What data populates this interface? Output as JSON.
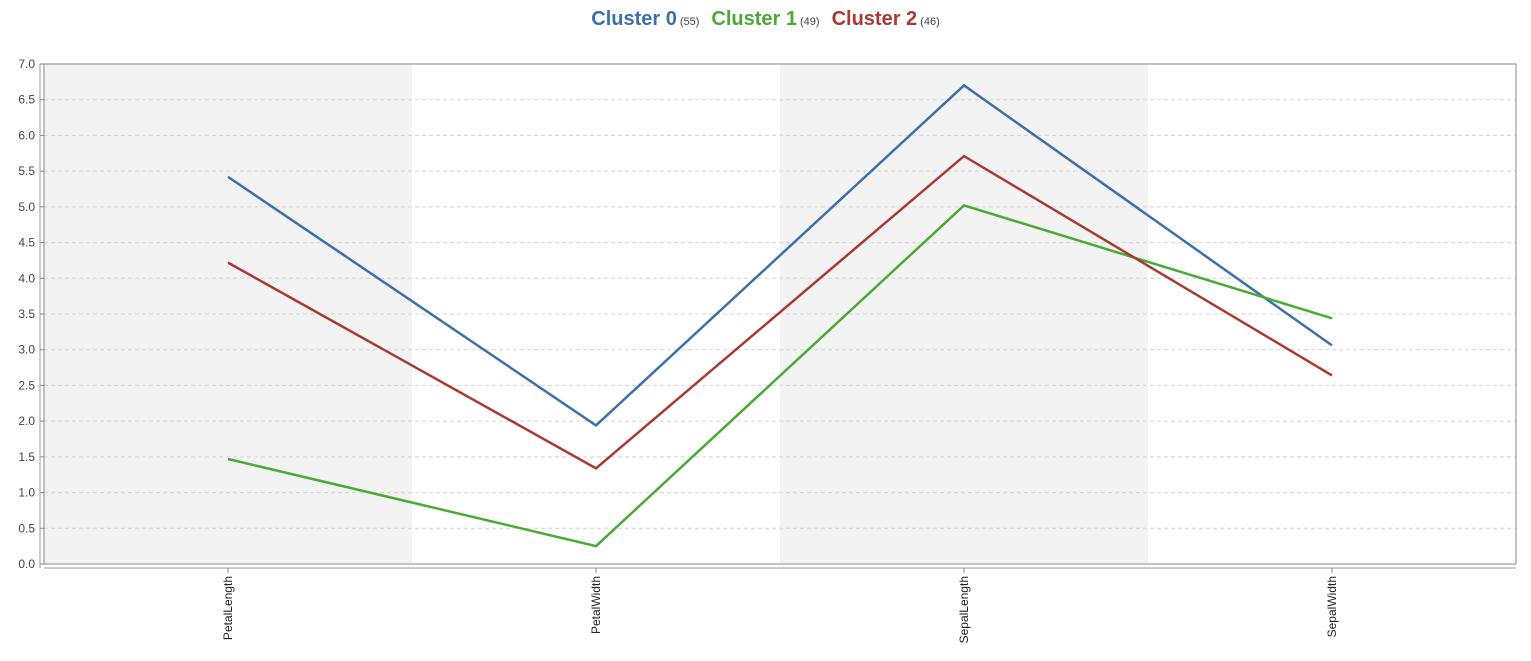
{
  "chart_data": {
    "type": "line",
    "categories": [
      "PetalLength",
      "PetalWidth",
      "SepalLength",
      "SepalWidth"
    ],
    "series": [
      {
        "name": "Cluster 0",
        "count": "(55)",
        "color": "#3d6fa8",
        "values": [
          5.42,
          1.94,
          6.7,
          3.06
        ]
      },
      {
        "name": "Cluster 1",
        "count": "(49)",
        "color": "#4aab34",
        "values": [
          1.47,
          0.25,
          5.02,
          3.44
        ]
      },
      {
        "name": "Cluster 2",
        "count": "(46)",
        "color": "#a83a33",
        "values": [
          4.22,
          1.34,
          5.71,
          2.64
        ]
      }
    ],
    "ylim": [
      0,
      7
    ],
    "yticks": [
      "0.0",
      "0.5",
      "1.0",
      "1.5",
      "2.0",
      "2.5",
      "3.0",
      "3.5",
      "4.0",
      "4.5",
      "5.0",
      "5.5",
      "6.0",
      "6.5",
      "7.0"
    ],
    "shaded_categories": [
      "PetalLength",
      "SepalLength"
    ],
    "grid": true,
    "legend_position": "top-center",
    "title": "",
    "xlabel": "",
    "ylabel": ""
  }
}
